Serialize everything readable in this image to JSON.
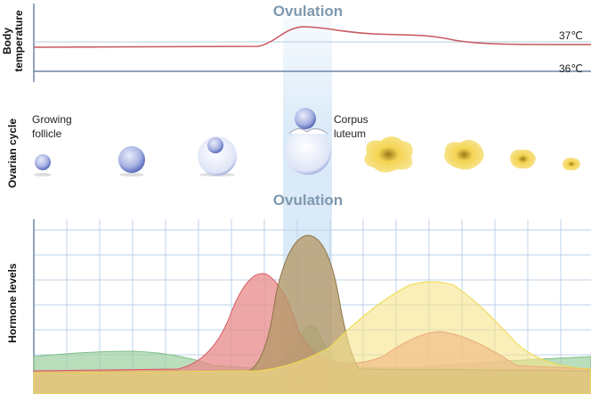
{
  "header": {
    "title": "Ovulation"
  },
  "temperature": {
    "label": [
      "Body",
      "temperature"
    ],
    "high": "37℃",
    "low": "36℃"
  },
  "ovarian": {
    "label": "Ovarian cycle",
    "follicle": [
      "Growing",
      "follicle"
    ],
    "luteum": [
      "Corpus",
      "luteum"
    ]
  },
  "hormones": {
    "title": "Ovulation",
    "label": "Hormone levels"
  }
}
